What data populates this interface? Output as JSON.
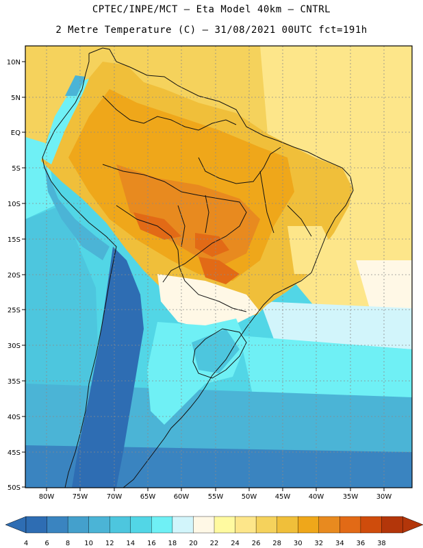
{
  "header": {
    "line1": "CPTEC/INPE/MCT –  Eta Model 40km – CNTRL",
    "line2": "2 Metre Temperature (C) – 31/08/2021 00UTC fct=191h"
  },
  "map": {
    "lat_labels": [
      "10N",
      "5N",
      "EQ",
      "5S",
      "10S",
      "15S",
      "20S",
      "25S",
      "30S",
      "35S",
      "40S",
      "45S",
      "50S"
    ],
    "lon_labels": [
      "80W",
      "75W",
      "70W",
      "65W",
      "60W",
      "55W",
      "50W",
      "45W",
      "40W",
      "35W",
      "30W"
    ]
  },
  "colorbar": {
    "labels": [
      "4",
      "6",
      "8",
      "10",
      "12",
      "14",
      "16",
      "18",
      "20",
      "22",
      "24",
      "26",
      "28",
      "30",
      "32",
      "34",
      "36",
      "38"
    ],
    "colors": [
      "#2e6db3",
      "#3a84c0",
      "#44a0cc",
      "#4bb4d6",
      "#4dc6de",
      "#52d6e6",
      "#6ff0f5",
      "#d2f5fb",
      "#fff8e6",
      "#fffaa0",
      "#fde68a",
      "#f5d25c",
      "#f0bf3a",
      "#efa71a",
      "#e88a1f",
      "#e26a16",
      "#cf4c0c",
      "#b3360a"
    ]
  },
  "colors": {
    "frame": "#000000",
    "grid": "#8a8a8a",
    "coast": "#111111"
  }
}
